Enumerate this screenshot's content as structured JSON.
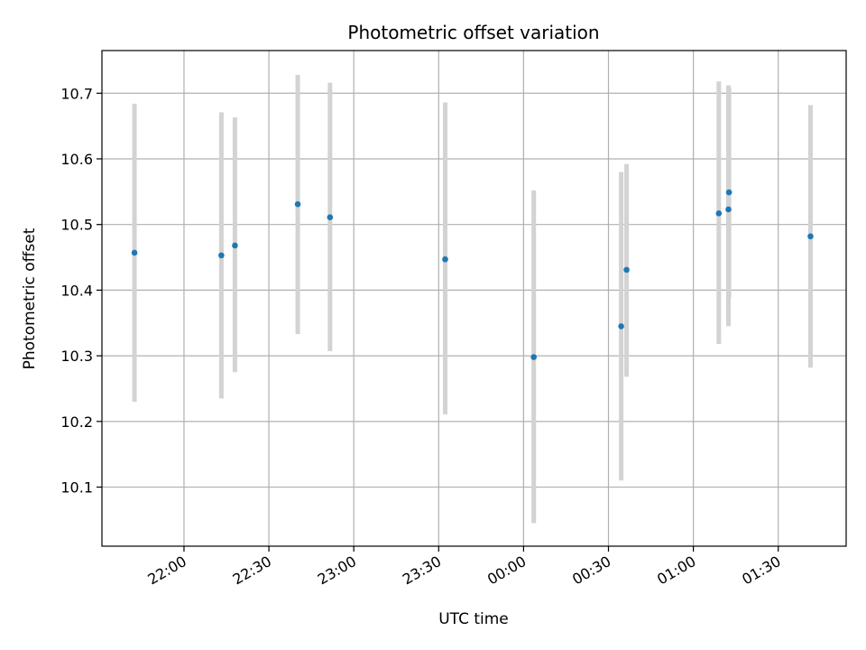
{
  "chart_data": {
    "type": "scatter",
    "title": "Photometric offset variation",
    "xlabel": "UTC time",
    "ylabel": "Photometric offset",
    "grid": true,
    "x_ticks": [
      {
        "label": "22:00",
        "minutes": 0
      },
      {
        "label": "22:30",
        "minutes": 30
      },
      {
        "label": "23:00",
        "minutes": 60
      },
      {
        "label": "23:30",
        "minutes": 90
      },
      {
        "label": "00:00",
        "minutes": 120
      },
      {
        "label": "00:30",
        "minutes": 150
      },
      {
        "label": "01:00",
        "minutes": 180
      },
      {
        "label": "01:30",
        "minutes": 210
      }
    ],
    "xlim_minutes": [
      -29,
      234
    ],
    "ylim": [
      10.01,
      10.765
    ],
    "y_ticks": [
      {
        "label": "10.1",
        "value": 10.1
      },
      {
        "label": "10.2",
        "value": 10.2
      },
      {
        "label": "10.3",
        "value": 10.3
      },
      {
        "label": "10.4",
        "value": 10.4
      },
      {
        "label": "10.5",
        "value": 10.5
      },
      {
        "label": "10.6",
        "value": 10.6
      },
      {
        "label": "10.7",
        "value": 10.7
      }
    ],
    "colors": {
      "point": "#1f77b4",
      "errorbar": "#d3d3d3",
      "grid": "#b0b0b0"
    },
    "points": [
      {
        "time": "21:42",
        "minutes": -17.5,
        "y": 10.457,
        "ylo": 10.23,
        "yhi": 10.684
      },
      {
        "time": "22:13",
        "minutes": 13.2,
        "y": 10.453,
        "ylo": 10.235,
        "yhi": 10.671
      },
      {
        "time": "22:18",
        "minutes": 18.0,
        "y": 10.468,
        "ylo": 10.275,
        "yhi": 10.663
      },
      {
        "time": "22:40",
        "minutes": 40.2,
        "y": 10.531,
        "ylo": 10.333,
        "yhi": 10.728
      },
      {
        "time": "22:51",
        "minutes": 51.6,
        "y": 10.511,
        "ylo": 10.307,
        "yhi": 10.716
      },
      {
        "time": "23:32",
        "minutes": 92.3,
        "y": 10.447,
        "ylo": 10.211,
        "yhi": 10.686
      },
      {
        "time": "00:03",
        "minutes": 123.6,
        "y": 10.298,
        "ylo": 10.045,
        "yhi": 10.552
      },
      {
        "time": "00:34",
        "minutes": 154.5,
        "y": 10.345,
        "ylo": 10.11,
        "yhi": 10.58
      },
      {
        "time": "00:36",
        "minutes": 156.4,
        "y": 10.431,
        "ylo": 10.268,
        "yhi": 10.592
      },
      {
        "time": "01:09",
        "minutes": 189.0,
        "y": 10.517,
        "ylo": 10.318,
        "yhi": 10.718
      },
      {
        "time": "01:12",
        "minutes": 192.4,
        "y": 10.523,
        "ylo": 10.345,
        "yhi": 10.712
      },
      {
        "time": "01:12",
        "minutes": 192.6,
        "y": 10.549,
        "ylo": 10.389,
        "yhi": 10.709
      },
      {
        "time": "01:41",
        "minutes": 221.4,
        "y": 10.482,
        "ylo": 10.282,
        "yhi": 10.682
      }
    ]
  }
}
